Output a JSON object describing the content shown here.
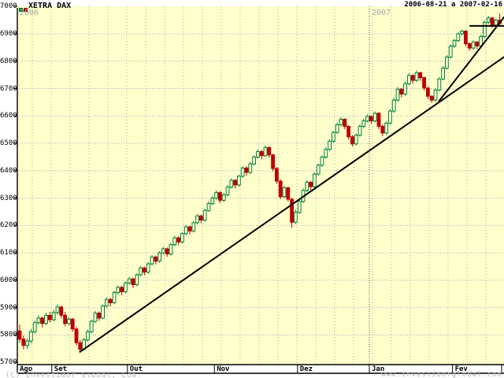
{
  "window": {
    "title": "XETRA DAX",
    "date_range": "2006-08-21 a 2007-02-16"
  },
  "watermarks": {
    "copyright": "(C) Investidor Global, Lda.",
    "website": "www.investidorglobal.com"
  },
  "legend": {
    "up_marker": "green-square",
    "down_marker": "red-square"
  },
  "chart_data": {
    "type": "candlestick",
    "title": "XETRA DAX",
    "period_label": "2006-08-21 a 2007-02-16",
    "ylim": [
      5700,
      7000
    ],
    "grid": true,
    "y_ticks": [
      "7000",
      "6900",
      "6800",
      "6700",
      "6600",
      "6500",
      "6400",
      "6300",
      "6200",
      "6100",
      "6000",
      "5900",
      "5800",
      "5700"
    ],
    "x_months": [
      {
        "label": "Ago",
        "days": 9
      },
      {
        "label": "Set",
        "days": 20
      },
      {
        "label": "Out",
        "days": 23
      },
      {
        "label": "Nov",
        "days": 22
      },
      {
        "label": "Dez",
        "days": 19
      },
      {
        "label": "Jan",
        "days": 22
      },
      {
        "label": "Fev",
        "days": 13
      }
    ],
    "years": [
      {
        "label": "2006"
      },
      {
        "label": "2007"
      }
    ],
    "candles": [
      [
        5815,
        5838,
        5772,
        5785
      ],
      [
        5785,
        5798,
        5748,
        5762
      ],
      [
        5762,
        5788,
        5750,
        5778
      ],
      [
        5778,
        5822,
        5770,
        5812
      ],
      [
        5812,
        5852,
        5806,
        5845
      ],
      [
        5845,
        5872,
        5838,
        5862
      ],
      [
        5862,
        5868,
        5828,
        5842
      ],
      [
        5842,
        5882,
        5836,
        5872
      ],
      [
        5872,
        5885,
        5846,
        5856
      ],
      [
        5856,
        5892,
        5850,
        5882
      ],
      [
        5882,
        5912,
        5874,
        5902
      ],
      [
        5902,
        5908,
        5862,
        5872
      ],
      [
        5872,
        5884,
        5832,
        5842
      ],
      [
        5842,
        5866,
        5836,
        5858
      ],
      [
        5858,
        5862,
        5812,
        5822
      ],
      [
        5822,
        5832,
        5762,
        5772
      ],
      [
        5772,
        5782,
        5738,
        5748
      ],
      [
        5748,
        5790,
        5744,
        5782
      ],
      [
        5782,
        5820,
        5776,
        5812
      ],
      [
        5812,
        5856,
        5806,
        5850
      ],
      [
        5850,
        5888,
        5844,
        5880
      ],
      [
        5880,
        5886,
        5852,
        5862
      ],
      [
        5862,
        5912,
        5858,
        5906
      ],
      [
        5906,
        5938,
        5900,
        5930
      ],
      [
        5930,
        5936,
        5904,
        5918
      ],
      [
        5918,
        5962,
        5912,
        5955
      ],
      [
        5955,
        5982,
        5948,
        5974
      ],
      [
        5974,
        5980,
        5946,
        5958
      ],
      [
        5958,
        5996,
        5952,
        5990
      ],
      [
        5990,
        6012,
        5984,
        6005
      ],
      [
        6005,
        6010,
        5972,
        5984
      ],
      [
        5984,
        6026,
        5978,
        6020
      ],
      [
        6020,
        6052,
        6014,
        6045
      ],
      [
        6045,
        6050,
        6018,
        6030
      ],
      [
        6030,
        6066,
        6024,
        6060
      ],
      [
        6060,
        6092,
        6054,
        6085
      ],
      [
        6085,
        6090,
        6058,
        6070
      ],
      [
        6070,
        6106,
        6064,
        6100
      ],
      [
        6100,
        6122,
        6094,
        6115
      ],
      [
        6115,
        6120,
        6086,
        6096
      ],
      [
        6096,
        6136,
        6090,
        6130
      ],
      [
        6130,
        6162,
        6124,
        6155
      ],
      [
        6155,
        6160,
        6128,
        6140
      ],
      [
        6140,
        6176,
        6134,
        6170
      ],
      [
        6170,
        6202,
        6164,
        6195
      ],
      [
        6195,
        6200,
        6168,
        6180
      ],
      [
        6180,
        6216,
        6174,
        6210
      ],
      [
        6210,
        6242,
        6204,
        6235
      ],
      [
        6235,
        6240,
        6208,
        6220
      ],
      [
        6220,
        6262,
        6214,
        6255
      ],
      [
        6255,
        6288,
        6250,
        6280
      ],
      [
        6280,
        6308,
        6274,
        6300
      ],
      [
        6300,
        6328,
        6294,
        6320
      ],
      [
        6320,
        6326,
        6282,
        6292
      ],
      [
        6292,
        6318,
        6286,
        6312
      ],
      [
        6312,
        6348,
        6306,
        6340
      ],
      [
        6340,
        6372,
        6334,
        6365
      ],
      [
        6365,
        6370,
        6336,
        6348
      ],
      [
        6348,
        6386,
        6342,
        6380
      ],
      [
        6380,
        6416,
        6374,
        6410
      ],
      [
        6410,
        6416,
        6382,
        6394
      ],
      [
        6394,
        6432,
        6388,
        6425
      ],
      [
        6425,
        6456,
        6420,
        6450
      ],
      [
        6450,
        6478,
        6444,
        6470
      ],
      [
        6470,
        6476,
        6442,
        6455
      ],
      [
        6455,
        6492,
        6450,
        6485
      ],
      [
        6485,
        6488,
        6448,
        6458
      ],
      [
        6458,
        6462,
        6398,
        6408
      ],
      [
        6408,
        6414,
        6352,
        6362
      ],
      [
        6362,
        6368,
        6296,
        6305
      ],
      [
        6305,
        6345,
        6300,
        6338
      ],
      [
        6338,
        6342,
        6288,
        6296
      ],
      [
        6296,
        6302,
        6192,
        6212
      ],
      [
        6212,
        6258,
        6205,
        6248
      ],
      [
        6248,
        6295,
        6242,
        6288
      ],
      [
        6288,
        6335,
        6282,
        6328
      ],
      [
        6328,
        6366,
        6322,
        6358
      ],
      [
        6358,
        6362,
        6330,
        6342
      ],
      [
        6342,
        6394,
        6336,
        6388
      ],
      [
        6388,
        6426,
        6382,
        6420
      ],
      [
        6420,
        6456,
        6414,
        6450
      ],
      [
        6450,
        6486,
        6444,
        6478
      ],
      [
        6478,
        6515,
        6472,
        6508
      ],
      [
        6508,
        6546,
        6502,
        6540
      ],
      [
        6540,
        6576,
        6534,
        6568
      ],
      [
        6568,
        6596,
        6562,
        6588
      ],
      [
        6588,
        6592,
        6552,
        6562
      ],
      [
        6562,
        6566,
        6514,
        6524
      ],
      [
        6524,
        6530,
        6488,
        6498
      ],
      [
        6498,
        6536,
        6492,
        6530
      ],
      [
        6530,
        6570,
        6524,
        6562
      ],
      [
        6562,
        6590,
        6556,
        6582
      ],
      [
        6582,
        6606,
        6576,
        6598
      ],
      [
        6598,
        6602,
        6572,
        6582
      ],
      [
        6582,
        6616,
        6576,
        6610
      ],
      [
        6610,
        6614,
        6552,
        6562
      ],
      [
        6562,
        6568,
        6526,
        6538
      ],
      [
        6538,
        6580,
        6532,
        6574
      ],
      [
        6574,
        6626,
        6568,
        6618
      ],
      [
        6618,
        6666,
        6612,
        6658
      ],
      [
        6658,
        6706,
        6652,
        6698
      ],
      [
        6698,
        6702,
        6668,
        6680
      ],
      [
        6680,
        6726,
        6674,
        6718
      ],
      [
        6718,
        6756,
        6712,
        6748
      ],
      [
        6748,
        6752,
        6718,
        6730
      ],
      [
        6730,
        6766,
        6724,
        6758
      ],
      [
        6758,
        6762,
        6728,
        6740
      ],
      [
        6740,
        6744,
        6692,
        6702
      ],
      [
        6702,
        6708,
        6662,
        6672
      ],
      [
        6672,
        6676,
        6648,
        6658
      ],
      [
        6658,
        6702,
        6652,
        6695
      ],
      [
        6695,
        6742,
        6690,
        6735
      ],
      [
        6735,
        6782,
        6730,
        6775
      ],
      [
        6775,
        6822,
        6770,
        6815
      ],
      [
        6815,
        6862,
        6810,
        6855
      ],
      [
        6855,
        6882,
        6848,
        6875
      ],
      [
        6875,
        6906,
        6870,
        6900
      ],
      [
        6900,
        6916,
        6894,
        6910
      ],
      [
        6910,
        6914,
        6854,
        6864
      ],
      [
        6864,
        6868,
        6838,
        6848
      ],
      [
        6848,
        6876,
        6842,
        6870
      ],
      [
        6870,
        6874,
        6844,
        6856
      ],
      [
        6856,
        6896,
        6850,
        6890
      ],
      [
        6890,
        6948,
        6884,
        6942
      ],
      [
        6942,
        6966,
        6936,
        6958
      ],
      [
        6958,
        6962,
        6922,
        6932
      ],
      [
        6932,
        6956,
        6926,
        6950
      ],
      [
        6950,
        6974,
        6928,
        6938
      ]
    ],
    "overlays": [
      {
        "name": "long-term-trendline",
        "from": {
          "day": 15.8,
          "price": 5737
        },
        "to": {
          "day": 128.2,
          "price": 6816
        }
      },
      {
        "name": "short-term-trendline",
        "from": {
          "day": 110.8,
          "price": 6652
        },
        "to": {
          "day": 128.2,
          "price": 6962
        }
      },
      {
        "name": "resistance-line",
        "from": {
          "day": 119.0,
          "price": 6929
        },
        "to": {
          "day": 128.2,
          "price": 6929
        }
      }
    ],
    "colors": {
      "plot_bg": "#FFFFCC",
      "up": "#008040",
      "down": "#C00000",
      "grid": "#AAAAC0",
      "year_line": "#555555",
      "trend": "#000000",
      "axis": "#000000",
      "muted_text": "#B4B4B4"
    }
  }
}
